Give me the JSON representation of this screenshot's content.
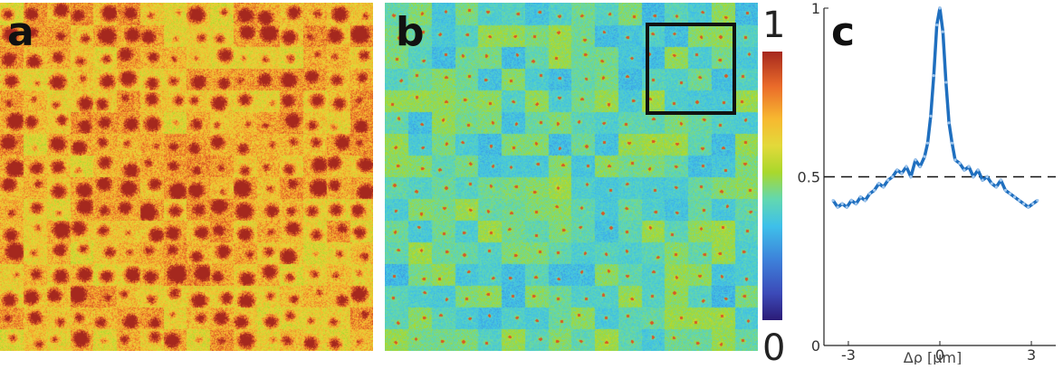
{
  "panels": {
    "a": {
      "letter": "a"
    },
    "b": {
      "letter": "b"
    },
    "c": {
      "letter": "c"
    }
  },
  "colorbar": {
    "max_label": "1",
    "min_label": "0",
    "stops": [
      "#2b1b77",
      "#3c4ab8",
      "#3d7fd9",
      "#3ec0ea",
      "#62d8b0",
      "#a9d82c",
      "#e3d93a",
      "#f7b830",
      "#ea6b2a",
      "#a5281e"
    ]
  },
  "chart_data": {
    "type": "line",
    "xlabel": "Δρ [μm]",
    "xlim": [
      -3.8,
      3.8
    ],
    "ylim": [
      0,
      1
    ],
    "xticks": [
      -3,
      0,
      3
    ],
    "yticks": [
      0,
      0.5,
      1
    ],
    "xtick_labels": [
      "-3",
      "0",
      "3"
    ],
    "ytick_labels": [
      "0",
      "0.5",
      "1"
    ],
    "reference_line": {
      "y": 0.5,
      "style": "dashed"
    },
    "series": [
      {
        "color": "#1f6fbf",
        "x": [
          -3.5,
          -3.35,
          -3.2,
          -3.05,
          -2.9,
          -2.75,
          -2.6,
          -2.45,
          -2.3,
          -2.15,
          -2.0,
          -1.85,
          -1.7,
          -1.55,
          -1.4,
          -1.25,
          -1.1,
          -0.95,
          -0.8,
          -0.65,
          -0.5,
          -0.4,
          -0.3,
          -0.2,
          -0.1,
          0.0,
          0.1,
          0.2,
          0.3,
          0.4,
          0.5,
          0.65,
          0.8,
          0.95,
          1.1,
          1.25,
          1.4,
          1.55,
          1.7,
          1.85,
          2.0,
          2.15,
          2.3,
          2.45,
          2.6,
          2.75,
          2.9,
          3.05,
          3.2
        ],
        "y": [
          0.43,
          0.41,
          0.42,
          0.41,
          0.43,
          0.42,
          0.44,
          0.43,
          0.45,
          0.46,
          0.48,
          0.47,
          0.49,
          0.5,
          0.52,
          0.51,
          0.53,
          0.5,
          0.55,
          0.53,
          0.56,
          0.6,
          0.68,
          0.8,
          0.95,
          1.0,
          0.93,
          0.78,
          0.66,
          0.6,
          0.55,
          0.54,
          0.52,
          0.53,
          0.5,
          0.52,
          0.49,
          0.5,
          0.48,
          0.47,
          0.49,
          0.46,
          0.45,
          0.44,
          0.43,
          0.42,
          0.41,
          0.42,
          0.43
        ]
      }
    ]
  }
}
